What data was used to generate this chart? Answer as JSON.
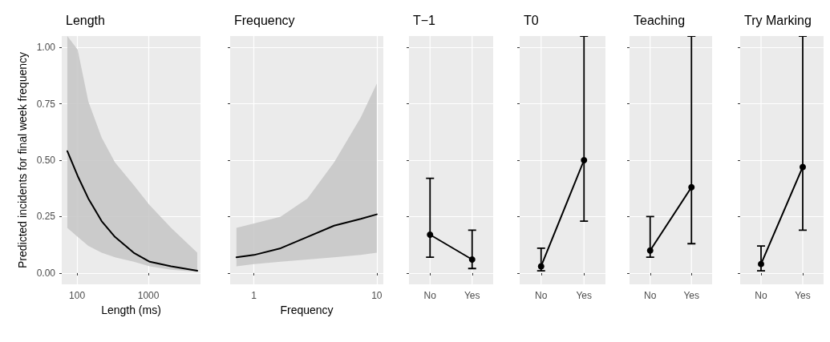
{
  "chart_data": [
    {
      "type": "line",
      "title": "Length",
      "xlabel": "Length (ms)",
      "ylabel": "Predicted incidents for final week frequency",
      "log": "x",
      "xlim": [
        61,
        5370
      ],
      "xticks": [
        100,
        1000
      ],
      "ylim": [
        -0.05,
        1.05
      ],
      "yticks": [
        {
          "value": 0,
          "label": "0.00"
        },
        {
          "value": 0.25,
          "label": "0.25"
        },
        {
          "value": 0.5,
          "label": "0.50"
        },
        {
          "value": 0.75,
          "label": "0.75"
        },
        {
          "value": 1,
          "label": "1.00"
        }
      ],
      "grid": true,
      "marker": "none",
      "line_style": "solid",
      "series": [
        {
          "color": "#000000",
          "x": [
            73,
            102,
            144,
            221,
            340,
            622,
            1045,
            2080,
            4840
          ],
          "values": [
            0.54,
            0.43,
            0.33,
            0.23,
            0.16,
            0.09,
            0.05,
            0.03,
            0.01
          ],
          "lower": [
            0.2,
            0.16,
            0.12,
            0.09,
            0.07,
            0.05,
            0.03,
            0.015,
            0.005
          ],
          "upper": [
            1.05,
            0.99,
            0.76,
            0.6,
            0.49,
            0.39,
            0.3,
            0.2,
            0.09
          ]
        }
      ]
    },
    {
      "type": "line",
      "title": "Frequency",
      "xlabel": "Frequency",
      "log": "x",
      "xlim": [
        0.64,
        11.3
      ],
      "xticks": [
        1,
        10
      ],
      "ylim": [
        -0.05,
        1.05
      ],
      "yticks": [
        0,
        0.25,
        0.5,
        0.75,
        1
      ],
      "tick_labels": "x",
      "grid": true,
      "marker": "none",
      "line_style": "solid",
      "series": [
        {
          "color": "#000000",
          "x": [
            0.72,
            1,
            1.65,
            2.72,
            4.49,
            7.41,
            10
          ],
          "values": [
            0.07,
            0.08,
            0.11,
            0.16,
            0.21,
            0.24,
            0.26
          ],
          "lower": [
            0.03,
            0.04,
            0.05,
            0.06,
            0.07,
            0.08,
            0.09
          ],
          "upper": [
            0.2,
            0.22,
            0.25,
            0.33,
            0.49,
            0.69,
            0.84
          ]
        }
      ]
    },
    {
      "type": "line",
      "title": "T−1",
      "categories": [
        "No",
        "Yes"
      ],
      "ylim": [
        -0.05,
        1.05
      ],
      "yticks": [
        0,
        0.25,
        0.5,
        0.75,
        1
      ],
      "tick_labels": "x",
      "grid": true,
      "marker": "circle",
      "line_style": "solid",
      "series": [
        {
          "color": "#000000",
          "values": [
            0.17,
            0.06
          ],
          "errors": [
            [
              0.07,
              0.42
            ],
            [
              0.02,
              0.19
            ]
          ]
        }
      ]
    },
    {
      "type": "line",
      "title": "T0",
      "categories": [
        "No",
        "Yes"
      ],
      "ylim": [
        -0.05,
        1.05
      ],
      "yticks": [
        0,
        0.25,
        0.5,
        0.75,
        1
      ],
      "tick_labels": "x",
      "grid": true,
      "marker": "circle",
      "line_style": "solid",
      "series": [
        {
          "color": "#000000",
          "values": [
            0.03,
            0.5
          ],
          "errors": [
            [
              0.01,
              0.11
            ],
            [
              0.23,
              1.05
            ]
          ]
        }
      ]
    },
    {
      "type": "line",
      "title": "Teaching",
      "categories": [
        "No",
        "Yes"
      ],
      "ylim": [
        -0.05,
        1.05
      ],
      "yticks": [
        0,
        0.25,
        0.5,
        0.75,
        1
      ],
      "tick_labels": "x",
      "grid": true,
      "marker": "circle",
      "line_style": "solid",
      "series": [
        {
          "color": "#000000",
          "values": [
            0.1,
            0.38
          ],
          "errors": [
            [
              0.07,
              0.25
            ],
            [
              0.13,
              1.05
            ]
          ]
        }
      ]
    },
    {
      "type": "line",
      "title": "Try Marking",
      "categories": [
        "No",
        "Yes"
      ],
      "ylim": [
        -0.05,
        1.05
      ],
      "yticks": [
        0,
        0.25,
        0.5,
        0.75,
        1
      ],
      "tick_labels": "x",
      "grid": true,
      "marker": "circle",
      "line_style": "solid",
      "series": [
        {
          "color": "#000000",
          "values": [
            0.04,
            0.47
          ],
          "errors": [
            [
              0.01,
              0.12
            ],
            [
              0.19,
              1.05
            ]
          ]
        }
      ]
    }
  ]
}
